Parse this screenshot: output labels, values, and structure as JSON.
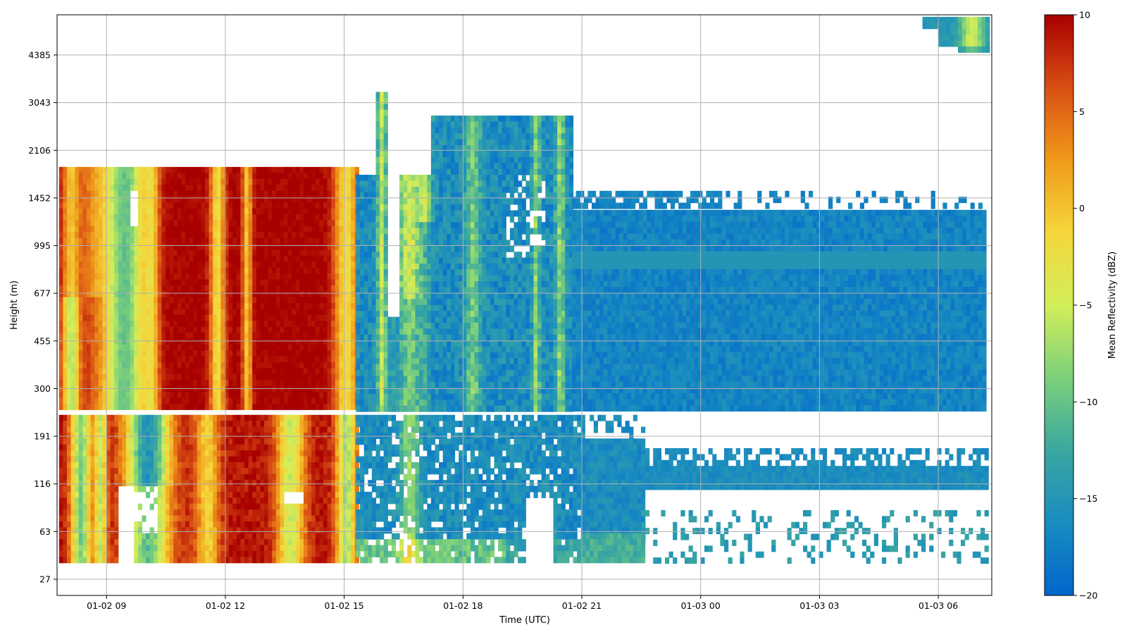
{
  "chart_data": {
    "type": "heatmap",
    "xlabel": "Time (UTC)",
    "ylabel": "Height (m)",
    "colorbar_label": "Mean Reflectivity (dBZ)",
    "x_ticks": [
      "01-02 09",
      "01-02 12",
      "01-02 15",
      "01-02 18",
      "01-02 21",
      "01-03 00",
      "01-03 03",
      "01-03 06"
    ],
    "x_tick_hours": [
      9,
      12,
      15,
      18,
      21,
      24,
      27,
      30
    ],
    "xlim_hours": [
      7.75,
      31.35
    ],
    "y_ticks": [
      "27",
      "63",
      "116",
      "191",
      "300",
      "455",
      "677",
      "995",
      "1452",
      "2106",
      "3043",
      "4385"
    ],
    "colorbar_ticks": [
      "10",
      "5",
      "0",
      "−5",
      "−10",
      "−15",
      "−20"
    ],
    "colorbar_values": [
      10,
      5,
      0,
      -5,
      -10,
      -15,
      -20
    ],
    "clim": [
      -20,
      10
    ],
    "colormap": [
      "#0066cc",
      "#1a8cc0",
      "#3aa7a0",
      "#7cd07a",
      "#d2ee5a",
      "#f5d63c",
      "#f09a1a",
      "#d84e14",
      "#a80000"
    ],
    "grid": true,
    "series": [
      {
        "band": "upper",
        "height_range_m": [
          260,
          1900
        ],
        "time_range": [
          "01-02 08",
          "01-02 15"
        ],
        "mean_dbz": 10
      },
      {
        "band": "upper",
        "height_range_m": [
          260,
          3300
        ],
        "time_range": [
          "01-02 15",
          "01-02 20"
        ],
        "mean_dbz": -12
      },
      {
        "band": "upper",
        "height_range_m": [
          260,
          850
        ],
        "time_range": [
          "01-02 20",
          "01-03 07"
        ],
        "mean_dbz": -17
      },
      {
        "band": "upper",
        "height_range_m": [
          1300,
          1500
        ],
        "time_range": [
          "01-02 20",
          "01-03 07"
        ],
        "mean_dbz": -17
      },
      {
        "band": "lower",
        "height_range_m": [
          40,
          240
        ],
        "time_range": [
          "01-02 08",
          "01-02 15"
        ],
        "mean_dbz": 8
      },
      {
        "band": "lower",
        "height_range_m": [
          40,
          240
        ],
        "time_range": [
          "01-02 15",
          "01-02 21"
        ],
        "mean_dbz": -14
      },
      {
        "band": "lower",
        "height_range_m": [
          120,
          170
        ],
        "time_range": [
          "01-02 21",
          "01-03 07"
        ],
        "mean_dbz": -16
      }
    ]
  }
}
